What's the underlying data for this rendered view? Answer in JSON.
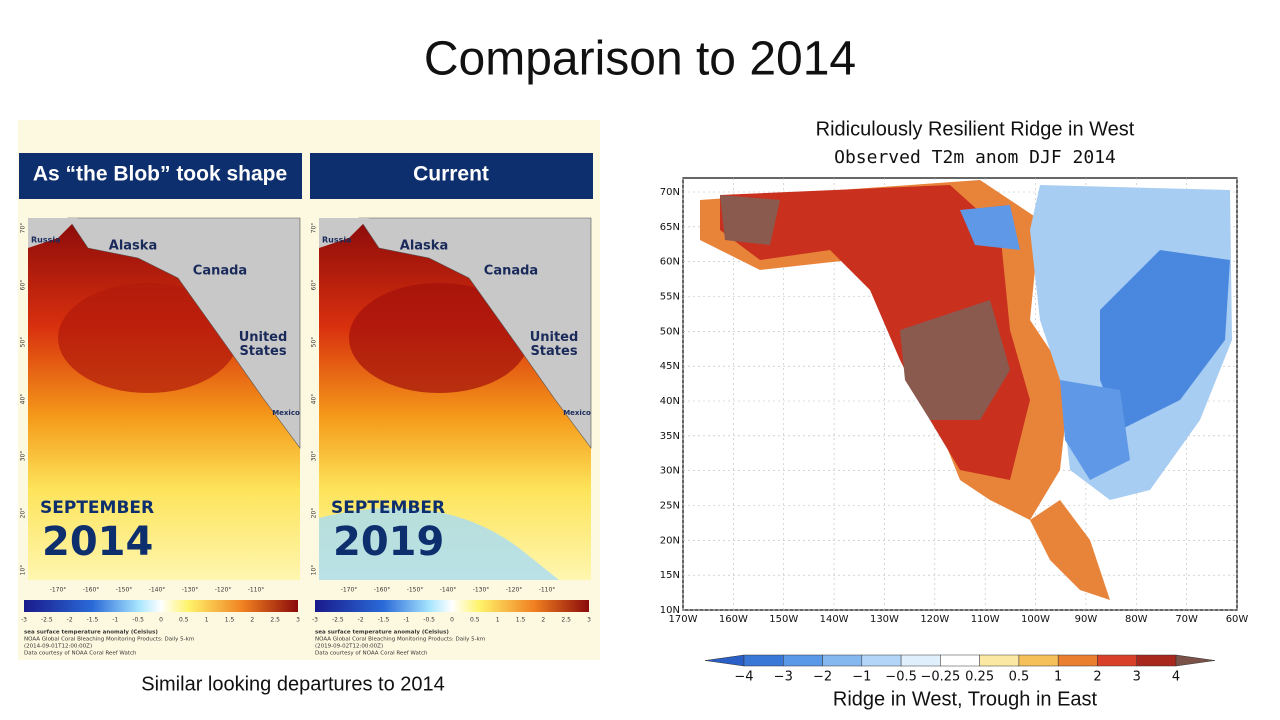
{
  "title": "Comparison to 2014",
  "left": {
    "panels": [
      {
        "header": "As “the Blob” took shape",
        "month": "SEPTEMBER",
        "year": "2014",
        "date": "(2014-09-01T12:00:00Z)"
      },
      {
        "header": "Current",
        "month": "SEPTEMBER",
        "year": "2019",
        "date": "(2019-09-02T12:00:00Z)"
      }
    ],
    "map_labels": {
      "russia": "Russia",
      "alaska": "Alaska",
      "canada": "Canada",
      "us": "United States",
      "mexico": "Mexico"
    },
    "lon_labels": [
      "-170°",
      "-160°",
      "-150°",
      "-140°",
      "-130°",
      "-120°",
      "-110°"
    ],
    "lat_labels": [
      "70°",
      "60°",
      "50°",
      "40°",
      "30°",
      "20°",
      "10°"
    ],
    "colorbar_ticks": [
      "-3",
      "-2.5",
      "-2",
      "-1.5",
      "-1",
      "-0.5",
      "0",
      "0.5",
      "1",
      "1.5",
      "2",
      "2.5",
      "3"
    ],
    "legend_lines": [
      "sea surface temperature anomaly (Celsius)",
      "NOAA Global Coral Bleaching Monitoring Products: Daily 5-km",
      "Data courtesy of NOAA Coral Reef Watch"
    ],
    "caption": "Similar looking departures to 2014"
  },
  "right": {
    "title": "Ridiculously Resilient Ridge in West",
    "subtitle": "Observed T2m anom DJF 2014",
    "lat_labels": [
      "70N",
      "65N",
      "60N",
      "55N",
      "50N",
      "45N",
      "40N",
      "35N",
      "30N",
      "25N",
      "20N",
      "15N",
      "10N"
    ],
    "lon_labels": [
      "170W",
      "160W",
      "150W",
      "140W",
      "130W",
      "120W",
      "110W",
      "100W",
      "90W",
      "80W",
      "70W",
      "60W"
    ],
    "colorbar_labels": [
      "−4",
      "−3",
      "−2",
      "−1",
      "−0.5",
      "−0.25",
      "0.25",
      "0.5",
      "1",
      "2",
      "3",
      "4"
    ],
    "caption": "Ridge in West, Trough in East"
  }
}
